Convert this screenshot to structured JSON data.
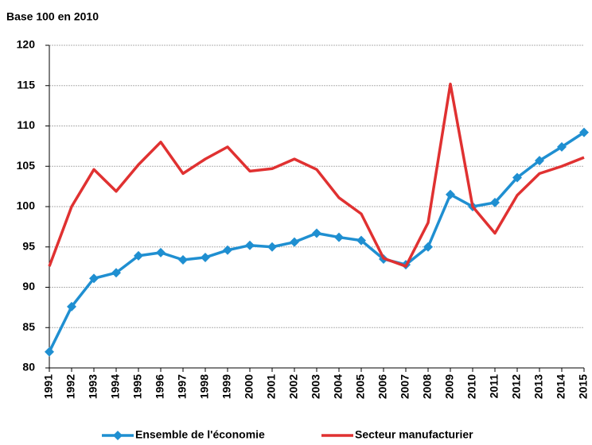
{
  "chart_data": {
    "type": "line",
    "y_label": "Base 100 en 2010",
    "categories": [
      "1991",
      "1992",
      "1993",
      "1994",
      "1995",
      "1996",
      "1997",
      "1998",
      "1999",
      "2000",
      "2001",
      "2002",
      "2003",
      "2004",
      "2005",
      "2006",
      "2007",
      "2008",
      "2009",
      "2010",
      "2011",
      "2012",
      "2013",
      "2014",
      "2015"
    ],
    "series": [
      {
        "name": "Ensemble de l'économie",
        "color": "#1f8fd1",
        "marker": "diamond",
        "values": [
          82,
          87.6,
          91.1,
          91.8,
          93.9,
          94.3,
          93.4,
          93.7,
          94.6,
          95.2,
          95.0,
          95.6,
          96.7,
          96.2,
          95.8,
          93.5,
          92.8,
          95.0,
          101.5,
          100,
          100.5,
          103.6,
          105.7,
          107.4,
          109.2
        ]
      },
      {
        "name": "Secteur manufacturier",
        "color": "#e03131",
        "marker": "none",
        "values": [
          92.6,
          100,
          104.6,
          101.9,
          105.2,
          108.0,
          104.1,
          105.9,
          107.4,
          104.4,
          104.7,
          105.9,
          104.6,
          101.1,
          99.1,
          93.6,
          92.6,
          98.0,
          115.2,
          100,
          96.7,
          101.4,
          104.1,
          105.0,
          106.1
        ]
      }
    ],
    "ylim": [
      80,
      120
    ],
    "yticks": [
      80,
      85,
      90,
      95,
      100,
      105,
      110,
      115,
      120
    ],
    "grid": true,
    "legend": "bottom"
  }
}
